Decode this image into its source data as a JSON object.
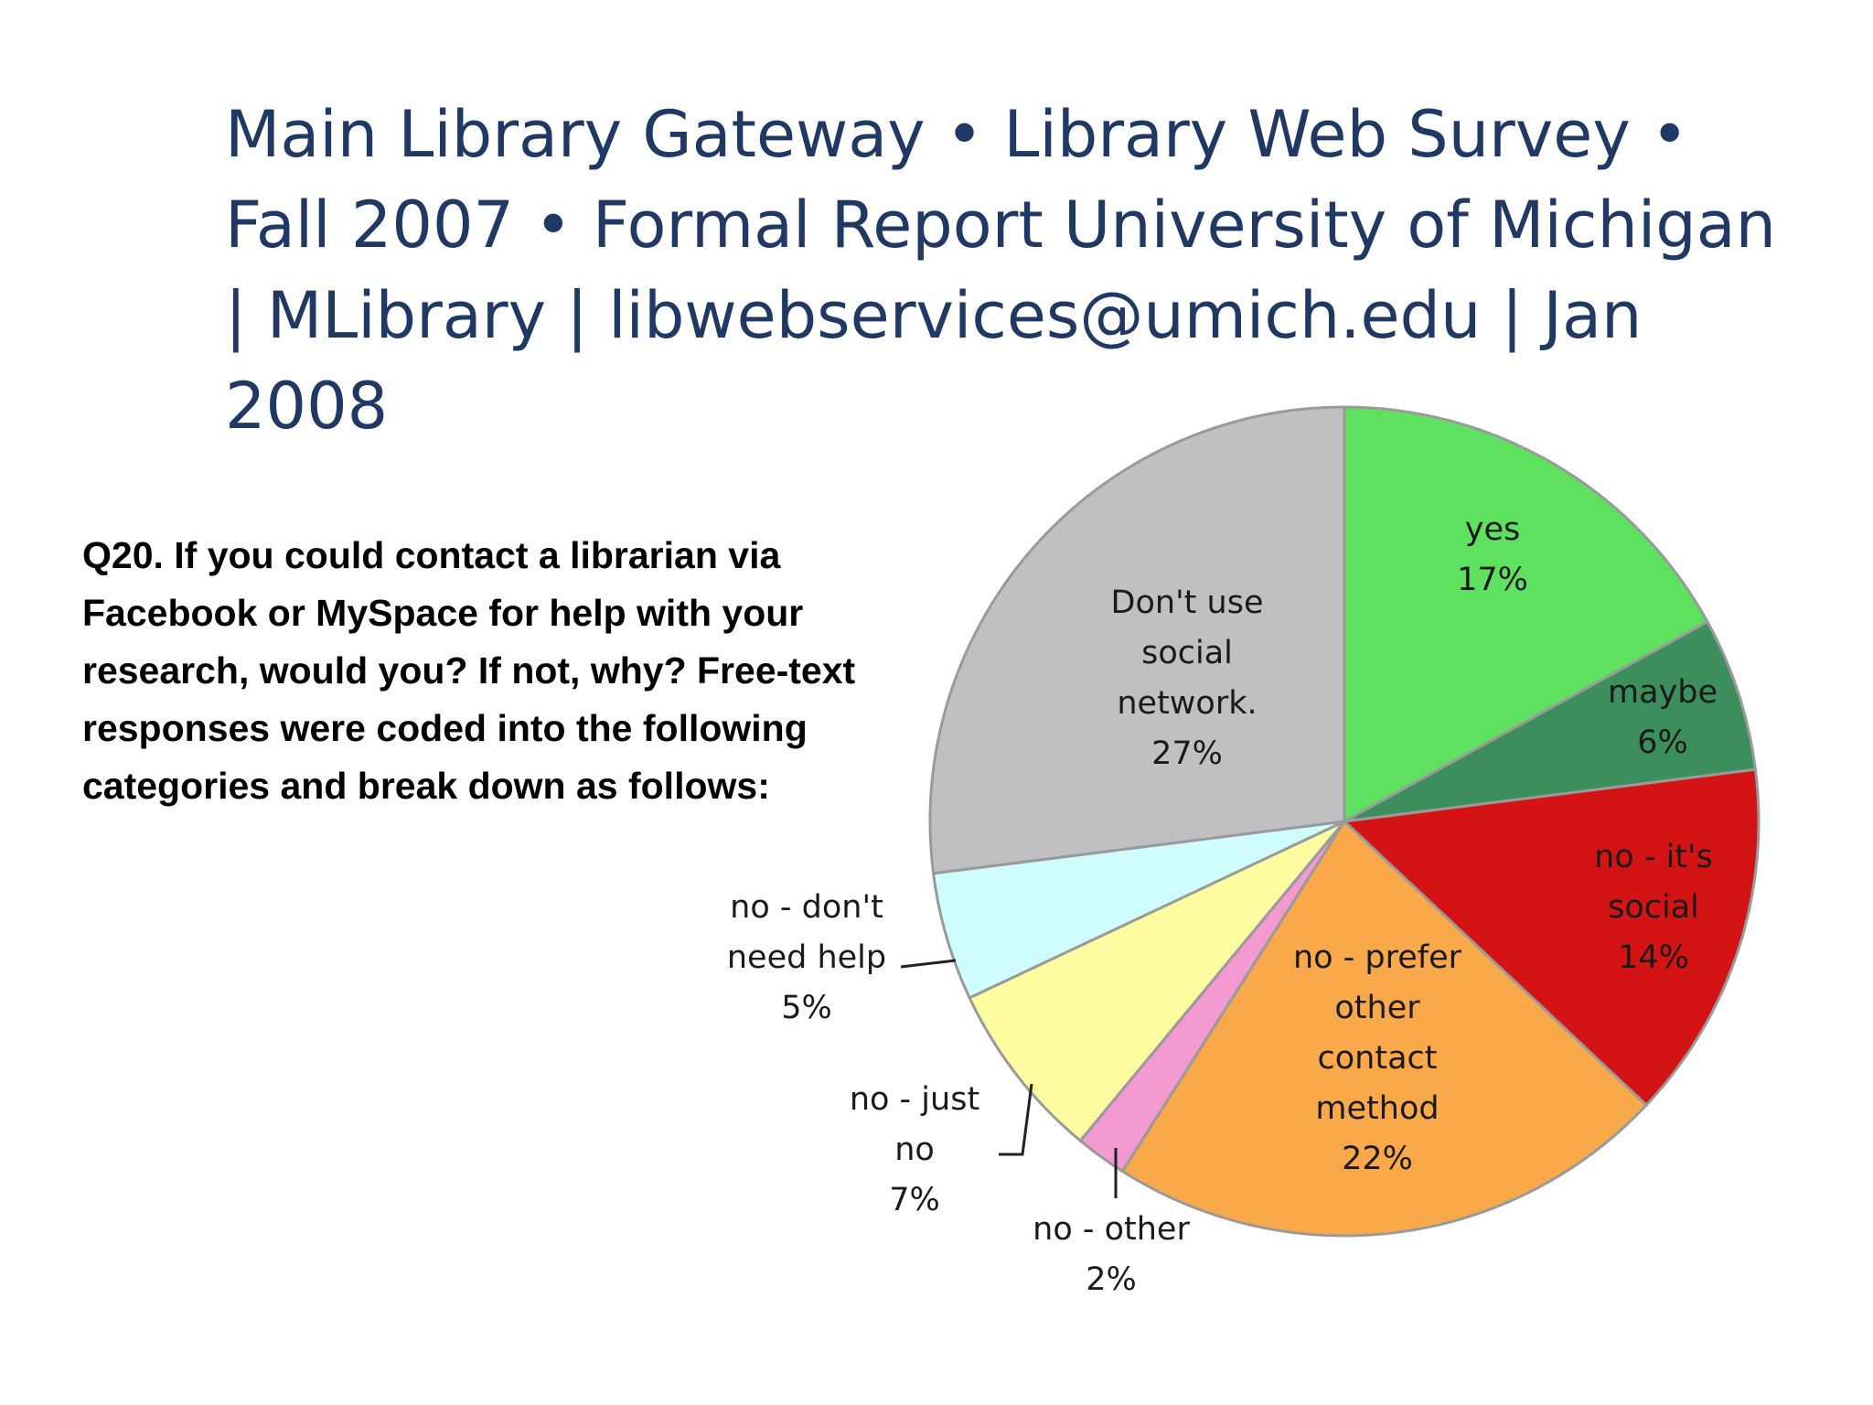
{
  "slide": {
    "title": "Main Library Gateway • Library Web Survey • Fall 2007 • Formal Report University of Michigan | MLibrary | libwebservices@umich.edu | Jan 2008",
    "question": "Q20. If you could contact a librarian via Facebook or MySpace for help with your research, would you? If not, why? Free-text responses were coded into the following categories and break down as follows:"
  },
  "chart_data": {
    "type": "pie",
    "title": "",
    "start": "top, clockwise",
    "slices": [
      {
        "label": "yes",
        "value": 17,
        "value_label": "17%",
        "color": "#5ee15e"
      },
      {
        "label": "maybe",
        "value": 6,
        "value_label": "6%",
        "color": "#3c8f5c"
      },
      {
        "label": "no - it's social",
        "value": 14,
        "value_label": "14%",
        "color": "#d41414"
      },
      {
        "label": "no - prefer other contact method",
        "value": 22,
        "value_label": "22%",
        "color": "#f9a84a"
      },
      {
        "label": "no - other",
        "value": 2,
        "value_label": "2%",
        "color": "#f39bd0"
      },
      {
        "label": "no - just no",
        "value": 7,
        "value_label": "7%",
        "color": "#fdfca0"
      },
      {
        "label": "no - don't need help",
        "value": 5,
        "value_label": "5%",
        "color": "#cffcfc"
      },
      {
        "label": "Don't use social network.",
        "value": 27,
        "value_label": "27%",
        "color": "#c0bfc1"
      }
    ]
  }
}
